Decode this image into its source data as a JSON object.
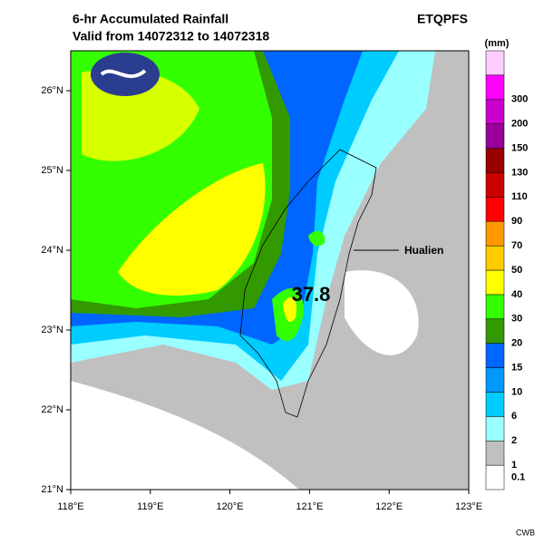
{
  "header": {
    "title": "6-hr Accumulated Rainfall",
    "subtitle": "Valid from 14072312 to 14072318",
    "model": "ETQPFS"
  },
  "map": {
    "xlim": [
      118,
      123
    ],
    "ylim": [
      21,
      26.5
    ],
    "xticks": [
      {
        "value": 118,
        "label": "118°E"
      },
      {
        "value": 119,
        "label": "119°E"
      },
      {
        "value": 120,
        "label": "120°E"
      },
      {
        "value": 121,
        "label": "121°E"
      },
      {
        "value": 122,
        "label": "122°E"
      },
      {
        "value": 123,
        "label": "123°E"
      }
    ],
    "yticks": [
      {
        "value": 21,
        "label": "21°N"
      },
      {
        "value": 22,
        "label": "22°N"
      },
      {
        "value": 23,
        "label": "23°N"
      },
      {
        "value": 24,
        "label": "24°N"
      },
      {
        "value": 25,
        "label": "25°N"
      },
      {
        "value": 26,
        "label": "26°N"
      }
    ],
    "annotations": {
      "station": "Hualien",
      "max_value": "37.8"
    }
  },
  "legend": {
    "unit": "(mm)",
    "levels": [
      {
        "value": 0.1,
        "color": "#ffffff"
      },
      {
        "value": 1,
        "color": "#c0c0c0"
      },
      {
        "value": 2,
        "color": "#99ffff"
      },
      {
        "value": 6,
        "color": "#00ccff"
      },
      {
        "value": 10,
        "color": "#0099ff"
      },
      {
        "value": 15,
        "color": "#0066ff"
      },
      {
        "value": 20,
        "color": "#339900"
      },
      {
        "value": 30,
        "color": "#33ff00"
      },
      {
        "value": 40,
        "color": "#ffff00"
      },
      {
        "value": 50,
        "color": "#ffcc00"
      },
      {
        "value": 70,
        "color": "#ff9900"
      },
      {
        "value": 90,
        "color": "#ff0000"
      },
      {
        "value": 110,
        "color": "#cc0000"
      },
      {
        "value": 130,
        "color": "#990000"
      },
      {
        "value": 150,
        "color": "#990099"
      },
      {
        "value": 200,
        "color": "#cc00cc"
      },
      {
        "value": 300,
        "color": "#ff00ff"
      }
    ],
    "top_color": "#ffccff"
  },
  "footer": {
    "source": "CWB"
  }
}
